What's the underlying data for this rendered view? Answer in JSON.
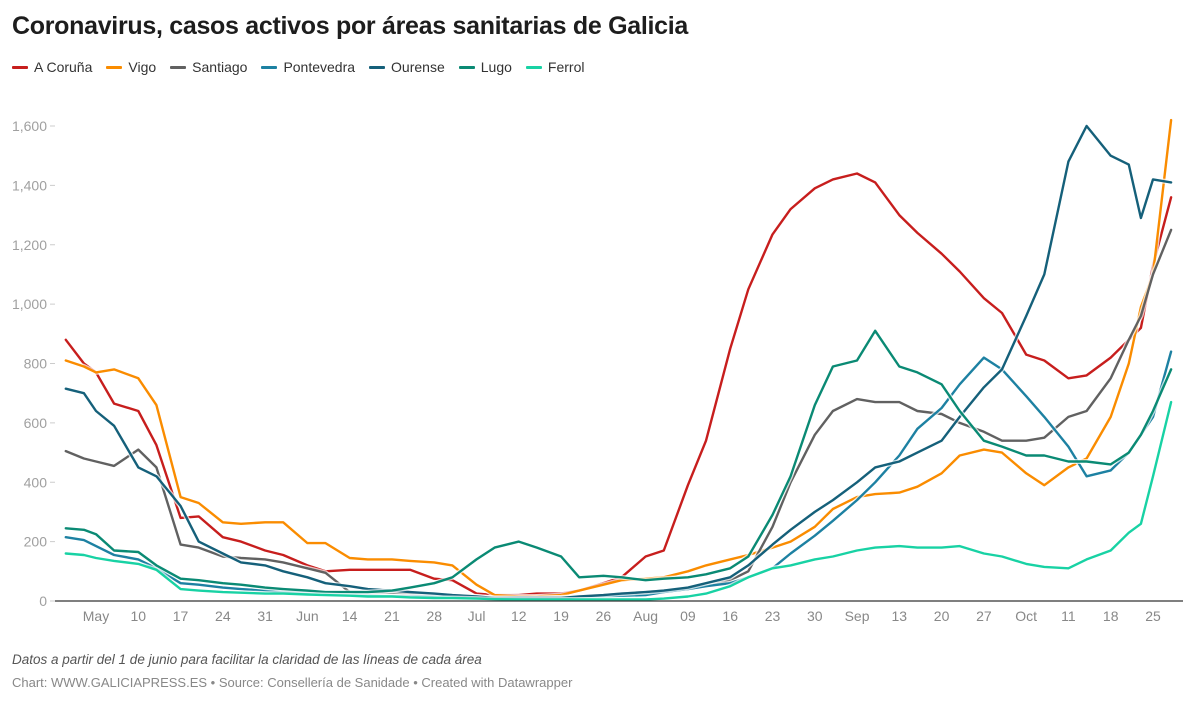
{
  "chart_data": {
    "type": "line",
    "title": "Coronavirus, casos activos por áreas sanitarias de Galicia",
    "xlabel": "",
    "ylabel": "",
    "ylim": [
      0,
      1650
    ],
    "grid": false,
    "legend_position": "top-left",
    "y_ticks": [
      {
        "value": 0,
        "label": "0"
      },
      {
        "value": 200,
        "label": "200"
      },
      {
        "value": 400,
        "label": "400"
      },
      {
        "value": 600,
        "label": "600"
      },
      {
        "value": 800,
        "label": "800"
      },
      {
        "value": 1000,
        "label": "1,000"
      },
      {
        "value": 1200,
        "label": "1,200"
      },
      {
        "value": 1400,
        "label": "1,400"
      },
      {
        "value": 1600,
        "label": "1,600"
      }
    ],
    "x_ticks": [
      {
        "date": "May 3",
        "label": "May"
      },
      {
        "date": "May 10",
        "label": "10"
      },
      {
        "date": "May 17",
        "label": "17"
      },
      {
        "date": "May 24",
        "label": "24"
      },
      {
        "date": "May 31",
        "label": "31"
      },
      {
        "date": "Jun 7",
        "label": "Jun"
      },
      {
        "date": "Jun 14",
        "label": "14"
      },
      {
        "date": "Jun 21",
        "label": "21"
      },
      {
        "date": "Jun 28",
        "label": "28"
      },
      {
        "date": "Jul 5",
        "label": "Jul"
      },
      {
        "date": "Jul 12",
        "label": "12"
      },
      {
        "date": "Jul 19",
        "label": "19"
      },
      {
        "date": "Jul 26",
        "label": "26"
      },
      {
        "date": "Aug 2",
        "label": "Aug"
      },
      {
        "date": "Aug 9",
        "label": "09"
      },
      {
        "date": "Aug 16",
        "label": "16"
      },
      {
        "date": "Aug 23",
        "label": "23"
      },
      {
        "date": "Aug 30",
        "label": "30"
      },
      {
        "date": "Sep 6",
        "label": "Sep"
      },
      {
        "date": "Sep 13",
        "label": "13"
      },
      {
        "date": "Sep 20",
        "label": "20"
      },
      {
        "date": "Sep 27",
        "label": "27"
      },
      {
        "date": "Oct 4",
        "label": "Oct"
      },
      {
        "date": "Oct 11",
        "label": "11"
      },
      {
        "date": "Oct 18",
        "label": "18"
      },
      {
        "date": "Oct 25",
        "label": "25"
      }
    ],
    "x": [
      "Apr 28",
      "May 1",
      "May 3",
      "May 6",
      "May 10",
      "May 13",
      "May 17",
      "May 20",
      "May 24",
      "May 27",
      "May 31",
      "Jun 3",
      "Jun 7",
      "Jun 10",
      "Jun 14",
      "Jun 17",
      "Jun 21",
      "Jun 24",
      "Jun 28",
      "Jul 1",
      "Jul 5",
      "Jul 8",
      "Jul 12",
      "Jul 15",
      "Jul 19",
      "Jul 22",
      "Jul 26",
      "Jul 29",
      "Aug 2",
      "Aug 5",
      "Aug 9",
      "Aug 12",
      "Aug 16",
      "Aug 19",
      "Aug 23",
      "Aug 26",
      "Aug 30",
      "Sep 2",
      "Sep 6",
      "Sep 9",
      "Sep 13",
      "Sep 16",
      "Sep 20",
      "Sep 23",
      "Sep 27",
      "Sep 30",
      "Oct 4",
      "Oct 7",
      "Oct 11",
      "Oct 14",
      "Oct 18",
      "Oct 21",
      "Oct 23",
      "Oct 25",
      "Oct 28"
    ],
    "series": [
      {
        "name": "A Coruña",
        "color": "#c71e1d",
        "values": [
          880,
          800,
          770,
          665,
          640,
          525,
          280,
          285,
          215,
          200,
          170,
          155,
          120,
          100,
          105,
          105,
          105,
          105,
          75,
          70,
          25,
          20,
          20,
          25,
          25,
          35,
          60,
          80,
          150,
          170,
          390,
          540,
          850,
          1050,
          1235,
          1320,
          1390,
          1420,
          1440,
          1410,
          1300,
          1240,
          1170,
          1110,
          1020,
          970,
          830,
          810,
          750,
          760,
          820,
          880,
          920,
          1130,
          1360
        ]
      },
      {
        "name": "Vigo",
        "color": "#fa8c00",
        "values": [
          810,
          790,
          770,
          780,
          750,
          660,
          350,
          330,
          265,
          260,
          265,
          265,
          195,
          195,
          145,
          140,
          140,
          135,
          130,
          120,
          55,
          20,
          15,
          15,
          20,
          35,
          55,
          70,
          75,
          80,
          100,
          120,
          140,
          155,
          180,
          200,
          250,
          310,
          350,
          360,
          365,
          385,
          430,
          490,
          510,
          500,
          430,
          390,
          450,
          480,
          620,
          800,
          990,
          1100,
          1620
        ]
      },
      {
        "name": "Santiago",
        "color": "#616161",
        "values": [
          505,
          480,
          470,
          455,
          510,
          450,
          190,
          180,
          150,
          145,
          140,
          130,
          110,
          95,
          30,
          30,
          28,
          25,
          22,
          20,
          15,
          10,
          10,
          10,
          12,
          15,
          20,
          25,
          30,
          35,
          40,
          50,
          70,
          100,
          250,
          400,
          560,
          640,
          680,
          670,
          670,
          640,
          630,
          600,
          570,
          540,
          540,
          550,
          620,
          640,
          750,
          880,
          960,
          1100,
          1250
        ]
      },
      {
        "name": "Pontevedra",
        "color": "#1d81a2",
        "values": [
          215,
          205,
          185,
          155,
          140,
          110,
          60,
          55,
          45,
          40,
          35,
          30,
          28,
          25,
          20,
          18,
          16,
          15,
          15,
          14,
          12,
          10,
          10,
          10,
          10,
          12,
          15,
          18,
          20,
          30,
          40,
          50,
          60,
          80,
          110,
          160,
          220,
          270,
          340,
          400,
          490,
          580,
          650,
          730,
          820,
          780,
          690,
          620,
          520,
          420,
          440,
          500,
          560,
          620,
          840
        ]
      },
      {
        "name": "Ourense",
        "color": "#15607a",
        "values": [
          715,
          700,
          640,
          590,
          450,
          420,
          320,
          200,
          160,
          130,
          120,
          100,
          80,
          60,
          50,
          40,
          35,
          30,
          25,
          20,
          15,
          10,
          10,
          10,
          10,
          15,
          20,
          25,
          30,
          35,
          45,
          60,
          80,
          120,
          190,
          240,
          300,
          340,
          400,
          450,
          470,
          500,
          540,
          620,
          720,
          780,
          960,
          1100,
          1480,
          1600,
          1500,
          1470,
          1290,
          1420,
          1410
        ]
      },
      {
        "name": "Lugo",
        "color": "#0a8a74",
        "values": [
          245,
          240,
          225,
          170,
          165,
          120,
          75,
          70,
          60,
          55,
          45,
          40,
          35,
          30,
          30,
          30,
          35,
          45,
          60,
          80,
          140,
          180,
          200,
          180,
          150,
          80,
          85,
          80,
          70,
          75,
          80,
          90,
          110,
          150,
          290,
          420,
          660,
          790,
          810,
          910,
          790,
          770,
          730,
          640,
          540,
          520,
          490,
          490,
          470,
          470,
          460,
          500,
          560,
          640,
          780
        ]
      },
      {
        "name": "Ferrol",
        "color": "#18d2a4",
        "values": [
          160,
          155,
          145,
          135,
          125,
          105,
          40,
          35,
          30,
          28,
          25,
          25,
          22,
          20,
          18,
          15,
          15,
          12,
          10,
          10,
          8,
          6,
          5,
          5,
          5,
          5,
          5,
          5,
          5,
          8,
          15,
          25,
          50,
          80,
          110,
          120,
          140,
          150,
          170,
          180,
          185,
          180,
          180,
          185,
          160,
          150,
          125,
          115,
          110,
          140,
          170,
          230,
          260,
          420,
          670
        ]
      }
    ]
  },
  "footer": {
    "note": "Datos a partir del 1 de junio para facilitar la claridad de las líneas de cada área",
    "credit": "Chart: WWW.GALICIAPRESS.ES • Source: Consellería de Sanidade • Created with Datawrapper"
  }
}
